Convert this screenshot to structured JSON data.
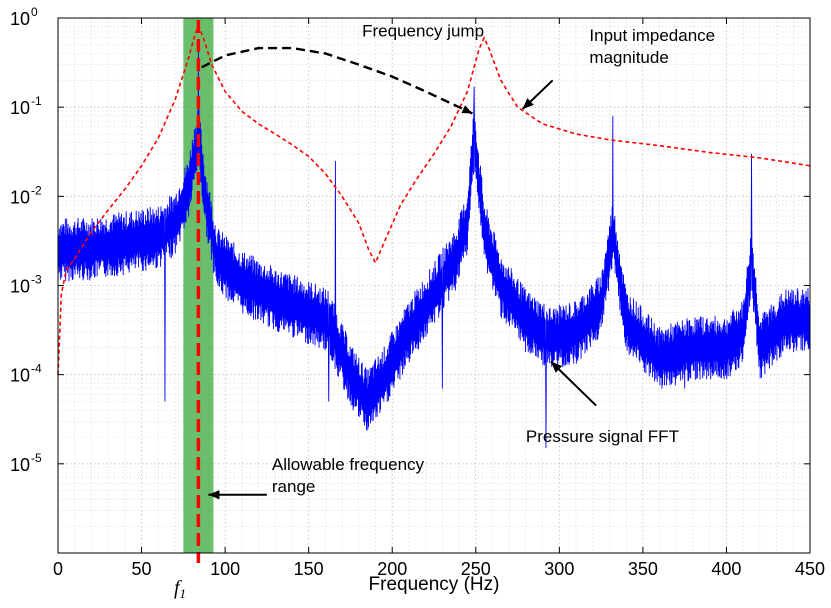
{
  "chart_data": {
    "type": "line",
    "title": "",
    "xlabel": "Frequency (Hz)",
    "ylabel": "",
    "xlim": [
      0,
      450
    ],
    "ylim": [
      1e-06,
      1
    ],
    "yscale": "log",
    "grid": true,
    "x_ticks": [
      0,
      50,
      100,
      150,
      200,
      250,
      300,
      350,
      400,
      450
    ],
    "x_tick_labels": [
      "0",
      "50",
      "100",
      "150",
      "200",
      "250",
      "300",
      "350",
      "400",
      "450"
    ],
    "y_ticks": [
      1e-05,
      0.0001,
      0.001,
      0.01,
      0.1,
      1
    ],
    "y_tick_labels": [
      {
        "base": "10",
        "exp": "-5"
      },
      {
        "base": "10",
        "exp": "-4"
      },
      {
        "base": "10",
        "exp": "-3"
      },
      {
        "base": "10",
        "exp": "-2"
      },
      {
        "base": "10",
        "exp": "-1"
      },
      {
        "base": "10",
        "exp": "0"
      }
    ],
    "colors": {
      "fft": "#0000ff",
      "impedance": "#ff0000",
      "jump": "#000000",
      "band": "#3aa83a",
      "f1_line": "#ff0000"
    },
    "allowable_band": [
      75,
      93
    ],
    "f1_value": 84,
    "series": [
      {
        "name": "Pressure signal FFT",
        "color": "#0000ff",
        "style": "solid",
        "baseline": [
          [
            0,
            0.0025
          ],
          [
            20,
            0.0026
          ],
          [
            40,
            0.003
          ],
          [
            60,
            0.0035
          ],
          [
            70,
            0.005
          ],
          [
            78,
            0.012
          ],
          [
            84,
            0.05
          ],
          [
            88,
            0.01
          ],
          [
            95,
            0.002
          ],
          [
            110,
            0.0011
          ],
          [
            130,
            0.0007
          ],
          [
            150,
            0.0005
          ],
          [
            162,
            0.0004
          ],
          [
            166,
            0.00025
          ],
          [
            175,
            0.0001
          ],
          [
            185,
            5e-05
          ],
          [
            195,
            9e-05
          ],
          [
            210,
            0.0003
          ],
          [
            225,
            0.0008
          ],
          [
            238,
            0.002
          ],
          [
            245,
            0.005
          ],
          [
            249,
            0.05
          ],
          [
            255,
            0.004
          ],
          [
            265,
            0.001
          ],
          [
            280,
            0.0004
          ],
          [
            295,
            0.00025
          ],
          [
            310,
            0.0003
          ],
          [
            325,
            0.0006
          ],
          [
            332,
            0.004
          ],
          [
            340,
            0.0004
          ],
          [
            360,
            0.00015
          ],
          [
            380,
            0.0002
          ],
          [
            400,
            0.0002
          ],
          [
            410,
            0.0003
          ],
          [
            415,
            0.002
          ],
          [
            420,
            0.0002
          ],
          [
            435,
            0.0004
          ],
          [
            450,
            0.00042
          ]
        ],
        "peaks": [
          {
            "x": 84,
            "y": 0.55
          },
          {
            "x": 166,
            "y": 0.025
          },
          {
            "x": 249,
            "y": 0.17
          },
          {
            "x": 332,
            "y": 0.08
          },
          {
            "x": 415,
            "y": 0.03
          }
        ],
        "dips": [
          {
            "x": 64,
            "y": 5e-05
          },
          {
            "x": 162,
            "y": 5e-05
          },
          {
            "x": 292,
            "y": 1.5e-05
          },
          {
            "x": 230,
            "y": 7e-05
          },
          {
            "x": 375,
            "y": 7e-05
          }
        ]
      },
      {
        "name": "Input impedance magnitude",
        "color": "#ff0000",
        "style": "dashed",
        "points": [
          [
            0,
            0.0001
          ],
          [
            2,
            0.0008
          ],
          [
            5,
            0.0015
          ],
          [
            10,
            0.002
          ],
          [
            20,
            0.004
          ],
          [
            30,
            0.007
          ],
          [
            40,
            0.012
          ],
          [
            50,
            0.022
          ],
          [
            60,
            0.045
          ],
          [
            70,
            0.12
          ],
          [
            78,
            0.35
          ],
          [
            82,
            0.65
          ],
          [
            84,
            0.82
          ],
          [
            87,
            0.6
          ],
          [
            92,
            0.3
          ],
          [
            100,
            0.15
          ],
          [
            110,
            0.09
          ],
          [
            120,
            0.065
          ],
          [
            130,
            0.05
          ],
          [
            140,
            0.038
          ],
          [
            150,
            0.028
          ],
          [
            160,
            0.018
          ],
          [
            170,
            0.01
          ],
          [
            180,
            0.005
          ],
          [
            186,
            0.0025
          ],
          [
            190,
            0.0018
          ],
          [
            195,
            0.003
          ],
          [
            205,
            0.008
          ],
          [
            215,
            0.016
          ],
          [
            225,
            0.03
          ],
          [
            235,
            0.06
          ],
          [
            245,
            0.15
          ],
          [
            252,
            0.45
          ],
          [
            255,
            0.6
          ],
          [
            258,
            0.45
          ],
          [
            265,
            0.2
          ],
          [
            275,
            0.1
          ],
          [
            290,
            0.065
          ],
          [
            310,
            0.05
          ],
          [
            330,
            0.043
          ],
          [
            360,
            0.037
          ],
          [
            390,
            0.031
          ],
          [
            420,
            0.027
          ],
          [
            450,
            0.022
          ]
        ]
      }
    ],
    "jump_path": {
      "style": "dashed",
      "points": [
        [
          86,
          0.28
        ],
        [
          100,
          0.38
        ],
        [
          120,
          0.46
        ],
        [
          140,
          0.46
        ],
        [
          160,
          0.4
        ],
        [
          180,
          0.3
        ],
        [
          200,
          0.22
        ],
        [
          220,
          0.15
        ],
        [
          240,
          0.1
        ],
        [
          248,
          0.085
        ]
      ]
    },
    "annotations": [
      {
        "id": "jump",
        "text": "Frequency jump",
        "x": 182,
        "y": 0.62
      },
      {
        "id": "impedance",
        "text": "Input impedance",
        "line2": "magnitude",
        "x": 318,
        "y": 0.55
      },
      {
        "id": "fft",
        "text": "Pressure signal FFT",
        "x": 280,
        "y": 1.75e-05
      },
      {
        "id": "range",
        "text": "Allowable frequency",
        "line2": "range",
        "x": 128,
        "y": 8.5e-06
      }
    ],
    "arrows": [
      {
        "id": "impedance-arrow",
        "from": [
          296,
          0.2
        ],
        "to": [
          278,
          0.095
        ]
      },
      {
        "id": "fft-arrow",
        "from": [
          322,
          4.5e-05
        ],
        "to": [
          295,
          0.00014
        ]
      },
      {
        "id": "range-arrow",
        "from": [
          125,
          4.5e-06
        ],
        "to": [
          90,
          4.5e-06
        ]
      }
    ],
    "f1_label": {
      "base": "f",
      "sub": "1"
    }
  }
}
